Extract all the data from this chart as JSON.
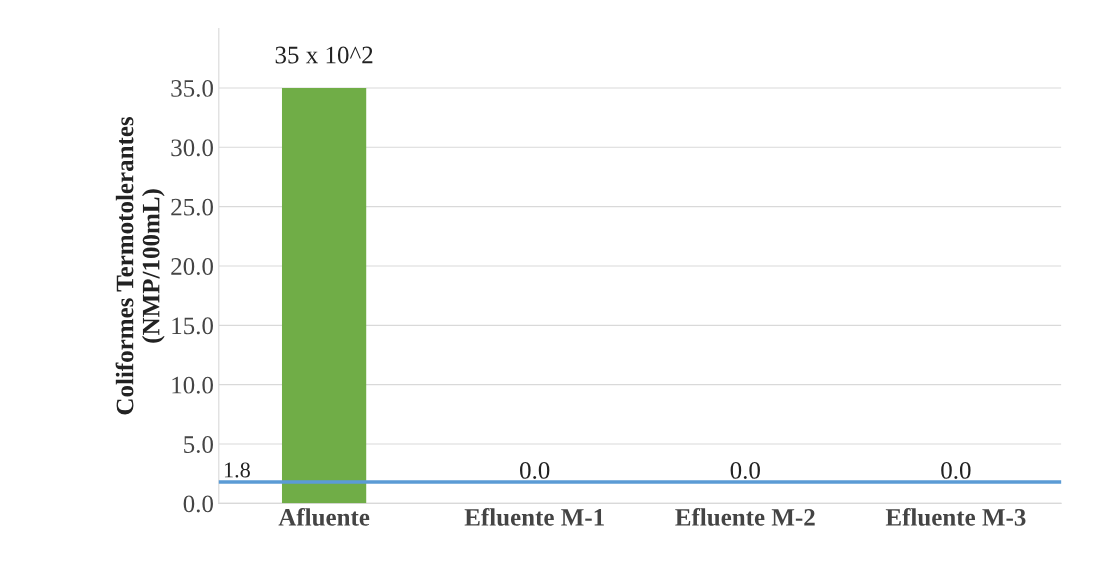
{
  "chart_data": {
    "type": "bar",
    "ylabel": "Coliformes Termotolerantes\n(NMP/100mL)",
    "categories": [
      "Afluente",
      "Efluente M-1",
      "Efluente M-2",
      "Efluente M-3"
    ],
    "values": [
      35,
      0,
      0,
      0
    ],
    "colors": [
      "#70ad47",
      "#3b6e9f",
      "#3b6e9f",
      "#3b6e9f"
    ],
    "value_labels": [
      null,
      "0.0",
      "0.0",
      "0.0"
    ],
    "annotations": [
      {
        "text": "35 x 10^2",
        "x": "Afluente",
        "y": 35
      }
    ],
    "ylim": [
      0,
      40
    ],
    "yticks": [
      {
        "value": 0,
        "label": "0.0"
      },
      {
        "value": 5,
        "label": "5.0"
      },
      {
        "value": 10,
        "label": "10.0"
      },
      {
        "value": 15,
        "label": "15.0"
      },
      {
        "value": 20,
        "label": "20.0"
      },
      {
        "value": 25,
        "label": "25.0"
      },
      {
        "value": 30,
        "label": "30.0"
      },
      {
        "value": 35,
        "label": "35.0"
      }
    ],
    "ref_lines": [
      {
        "axis": "y",
        "value": 1.8,
        "label": "1.8",
        "color": "#5b9bd5"
      }
    ],
    "grid": "y",
    "legend": false
  }
}
